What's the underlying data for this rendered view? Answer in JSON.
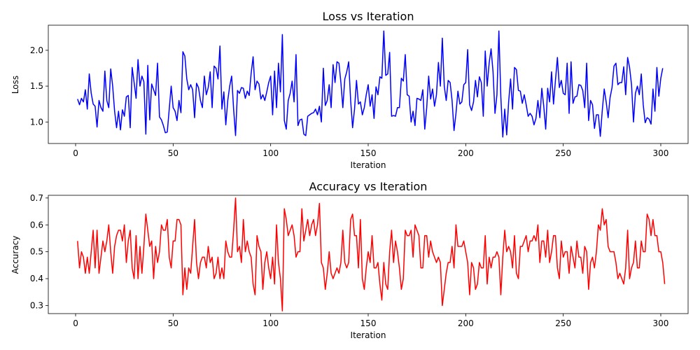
{
  "chart_data": [
    {
      "type": "line",
      "title": "Loss vs Iteration",
      "xlabel": "Iteration",
      "ylabel": "Loss",
      "xlim": [
        -14,
        314
      ],
      "ylim": [
        0.7,
        2.35
      ],
      "xticks": [
        0,
        50,
        100,
        150,
        200,
        250,
        300
      ],
      "yticks": [
        1.0,
        1.5,
        2.0
      ],
      "ytick_labels": [
        "1.0",
        "1.5",
        "2.0"
      ],
      "grid": false,
      "color": "#0000ff",
      "series": [
        {
          "x_start": 1,
          "x_step": 1,
          "values": [
            1.32,
            1.24,
            1.33,
            1.28,
            1.45,
            1.18,
            1.67,
            1.4,
            1.25,
            1.22,
            0.93,
            1.3,
            1.2,
            1.15,
            1.71,
            1.3,
            1.2,
            1.74,
            1.5,
            1.15,
            0.92,
            1.15,
            0.89,
            1.17,
            1.08,
            1.35,
            1.37,
            0.92,
            1.76,
            1.55,
            1.33,
            1.87,
            1.5,
            1.64,
            1.56,
            0.83,
            1.79,
            1.03,
            1.53,
            1.45,
            1.37,
            1.82,
            1.07,
            1.03,
            0.95,
            0.85,
            0.86,
            1.18,
            1.5,
            1.2,
            1.15,
            1.02,
            1.3,
            1.13,
            1.98,
            1.92,
            1.6,
            1.45,
            1.52,
            1.45,
            1.06,
            1.54,
            1.48,
            1.3,
            1.2,
            1.64,
            1.38,
            1.48,
            1.7,
            1.2,
            1.78,
            1.75,
            1.6,
            2.06,
            1.18,
            1.42,
            0.96,
            1.3,
            1.5,
            1.64,
            1.18,
            0.81,
            1.44,
            1.4,
            1.48,
            1.47,
            1.33,
            1.43,
            1.37,
            1.68,
            1.91,
            1.45,
            1.57,
            1.53,
            1.32,
            1.38,
            1.3,
            1.42,
            1.55,
            1.64,
            1.1,
            1.71,
            1.2,
            1.82,
            1.42,
            2.22,
            1.02,
            0.9,
            1.3,
            1.4,
            1.57,
            1.28,
            1.94,
            0.95,
            1.03,
            1.04,
            0.83,
            0.81,
            1.08,
            1.1,
            1.12,
            1.13,
            1.18,
            1.1,
            1.22,
            1.0,
            1.75,
            1.23,
            1.3,
            1.52,
            1.2,
            1.8,
            1.55,
            1.84,
            1.82,
            1.55,
            1.2,
            1.6,
            1.7,
            1.84,
            1.3,
            0.92,
            1.18,
            1.58,
            1.25,
            1.28,
            1.1,
            1.2,
            1.38,
            1.52,
            1.22,
            1.38,
            1.05,
            1.49,
            1.38,
            1.63,
            1.61,
            2.27,
            1.65,
            1.67,
            1.97,
            1.08,
            1.09,
            1.08,
            1.2,
            1.2,
            1.61,
            1.57,
            1.94,
            1.38,
            1.36,
            1.0,
            1.15,
            0.95,
            1.33,
            1.32,
            1.3,
            1.45,
            0.9,
            1.2,
            1.64,
            1.32,
            1.46,
            1.22,
            1.38,
            1.83,
            1.5,
            2.17,
            1.5,
            1.3,
            1.58,
            1.55,
            1.3,
            0.88,
            1.12,
            1.43,
            1.25,
            1.28,
            1.52,
            1.55,
            2.01,
            1.24,
            1.16,
            1.28,
            1.58,
            1.35,
            1.63,
            1.55,
            1.08,
            1.99,
            1.5,
            1.82,
            2.02,
            1.7,
            1.12,
            1.38,
            2.27,
            1.35,
            0.79,
            1.18,
            0.82,
            1.28,
            1.6,
            1.18,
            1.76,
            1.73,
            1.44,
            1.43,
            1.26,
            1.38,
            1.24,
            1.08,
            1.12,
            1.08,
            0.96,
            1.05,
            1.3,
            1.06,
            1.47,
            1.22,
            0.9,
            1.47,
            1.28,
            1.7,
            1.25,
            1.58,
            1.9,
            1.48,
            1.58,
            1.4,
            1.38,
            1.82,
            1.12,
            1.84,
            1.26,
            1.35,
            1.36,
            1.52,
            1.51,
            1.44,
            1.2,
            1.82,
            1.02,
            1.3,
            1.24,
            0.91,
            1.1,
            1.1,
            0.8,
            1.16,
            1.46,
            1.28,
            1.06,
            1.34,
            1.48,
            1.78,
            1.82,
            1.52,
            1.55,
            1.55,
            1.77,
            1.38,
            1.9,
            1.76,
            1.52,
            1.0,
            1.4,
            1.5,
            1.38,
            1.67,
            1.24,
            0.99,
            1.06,
            1.04,
            0.97,
            1.46,
            1.15,
            1.76,
            1.36,
            1.61,
            1.75
          ]
        }
      ]
    },
    {
      "type": "line",
      "title": "Accuracy vs Iteration",
      "xlabel": "Iteration",
      "ylabel": "Accuracy",
      "xlim": [
        -14,
        314
      ],
      "ylim": [
        0.27,
        0.71
      ],
      "xticks": [
        0,
        50,
        100,
        150,
        200,
        250,
        300
      ],
      "yticks": [
        0.3,
        0.4,
        0.5,
        0.6,
        0.7
      ],
      "ytick_labels": [
        "0.3",
        "0.4",
        "0.5",
        "0.6",
        "0.7"
      ],
      "grid": false,
      "color": "#ff0000",
      "series": [
        {
          "x_start": 1,
          "x_step": 1,
          "values": [
            0.54,
            0.44,
            0.5,
            0.48,
            0.42,
            0.48,
            0.42,
            0.5,
            0.58,
            0.44,
            0.58,
            0.42,
            0.48,
            0.54,
            0.5,
            0.54,
            0.6,
            0.5,
            0.42,
            0.52,
            0.56,
            0.58,
            0.58,
            0.54,
            0.6,
            0.46,
            0.54,
            0.58,
            0.44,
            0.4,
            0.56,
            0.4,
            0.52,
            0.42,
            0.52,
            0.64,
            0.58,
            0.52,
            0.54,
            0.4,
            0.52,
            0.46,
            0.5,
            0.6,
            0.58,
            0.58,
            0.62,
            0.48,
            0.44,
            0.54,
            0.54,
            0.62,
            0.62,
            0.6,
            0.34,
            0.44,
            0.36,
            0.44,
            0.42,
            0.52,
            0.62,
            0.46,
            0.4,
            0.46,
            0.48,
            0.48,
            0.44,
            0.52,
            0.46,
            0.48,
            0.4,
            0.42,
            0.48,
            0.4,
            0.44,
            0.4,
            0.54,
            0.5,
            0.48,
            0.48,
            0.58,
            0.7,
            0.5,
            0.52,
            0.46,
            0.62,
            0.5,
            0.54,
            0.5,
            0.48,
            0.38,
            0.34,
            0.56,
            0.52,
            0.5,
            0.36,
            0.46,
            0.5,
            0.44,
            0.4,
            0.48,
            0.38,
            0.6,
            0.46,
            0.4,
            0.28,
            0.66,
            0.62,
            0.56,
            0.58,
            0.6,
            0.56,
            0.48,
            0.5,
            0.5,
            0.66,
            0.54,
            0.58,
            0.62,
            0.56,
            0.6,
            0.62,
            0.56,
            0.6,
            0.68,
            0.46,
            0.44,
            0.36,
            0.42,
            0.5,
            0.42,
            0.4,
            0.42,
            0.44,
            0.42,
            0.46,
            0.58,
            0.46,
            0.44,
            0.46,
            0.62,
            0.64,
            0.56,
            0.56,
            0.44,
            0.62,
            0.4,
            0.36,
            0.44,
            0.5,
            0.46,
            0.56,
            0.44,
            0.44,
            0.46,
            0.38,
            0.32,
            0.46,
            0.38,
            0.36,
            0.5,
            0.58,
            0.46,
            0.54,
            0.5,
            0.44,
            0.36,
            0.4,
            0.58,
            0.56,
            0.56,
            0.58,
            0.48,
            0.6,
            0.58,
            0.56,
            0.44,
            0.44,
            0.56,
            0.56,
            0.48,
            0.54,
            0.5,
            0.48,
            0.46,
            0.48,
            0.46,
            0.3,
            0.36,
            0.42,
            0.46,
            0.46,
            0.52,
            0.44,
            0.6,
            0.52,
            0.52,
            0.52,
            0.54,
            0.5,
            0.46,
            0.34,
            0.46,
            0.44,
            0.36,
            0.38,
            0.46,
            0.44,
            0.44,
            0.56,
            0.38,
            0.48,
            0.44,
            0.48,
            0.48,
            0.5,
            0.48,
            0.34,
            0.48,
            0.58,
            0.5,
            0.52,
            0.5,
            0.44,
            0.56,
            0.42,
            0.4,
            0.52,
            0.52,
            0.54,
            0.56,
            0.5,
            0.54,
            0.54,
            0.56,
            0.54,
            0.6,
            0.46,
            0.54,
            0.54,
            0.48,
            0.58,
            0.46,
            0.5,
            0.56,
            0.56,
            0.44,
            0.4,
            0.54,
            0.48,
            0.5,
            0.5,
            0.42,
            0.52,
            0.48,
            0.44,
            0.54,
            0.48,
            0.48,
            0.42,
            0.52,
            0.5,
            0.36,
            0.46,
            0.48,
            0.44,
            0.5,
            0.6,
            0.58,
            0.66,
            0.6,
            0.62,
            0.52,
            0.5,
            0.5,
            0.5,
            0.46,
            0.4,
            0.42,
            0.4,
            0.38,
            0.44,
            0.58,
            0.4,
            0.44,
            0.46,
            0.54,
            0.44,
            0.44,
            0.54,
            0.5,
            0.5,
            0.64,
            0.62,
            0.56,
            0.62,
            0.56,
            0.56,
            0.5,
            0.5,
            0.46,
            0.38
          ]
        }
      ]
    }
  ]
}
